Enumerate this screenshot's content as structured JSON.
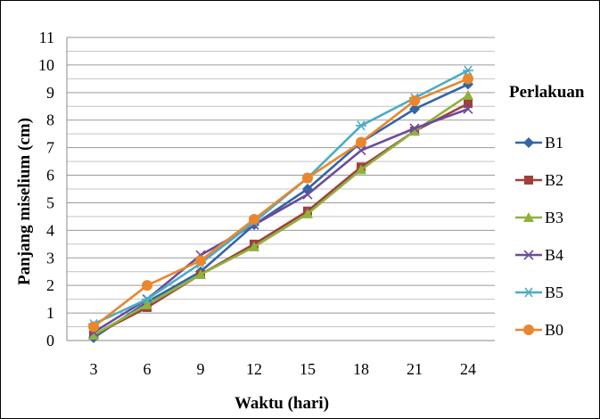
{
  "chart_data": {
    "type": "line",
    "title": "",
    "xlabel": "Waktu (hari)",
    "ylabel": "Panjang miselium (cm)",
    "x": [
      3,
      6,
      9,
      12,
      15,
      18,
      21,
      24
    ],
    "ylim": [
      0,
      11
    ],
    "yticks": [
      0,
      1,
      2,
      3,
      4,
      5,
      6,
      7,
      8,
      9,
      10,
      11
    ],
    "grid": true,
    "legend_title": "Perlakuan",
    "legend_position": "right",
    "series": [
      {
        "name": "B1",
        "color": "#3465A4",
        "marker": "diamond",
        "values": [
          0.1,
          1.4,
          2.5,
          4.2,
          5.5,
          7.2,
          8.4,
          9.3
        ]
      },
      {
        "name": "B2",
        "color": "#A0403C",
        "marker": "square",
        "values": [
          0.2,
          1.2,
          2.4,
          3.5,
          4.7,
          6.3,
          7.6,
          8.6
        ]
      },
      {
        "name": "B3",
        "color": "#8FB23C",
        "marker": "triangle",
        "values": [
          0.2,
          1.3,
          2.4,
          3.4,
          4.6,
          6.2,
          7.6,
          8.9
        ]
      },
      {
        "name": "B4",
        "color": "#6B4C9A",
        "marker": "x",
        "values": [
          0.3,
          1.5,
          3.1,
          4.2,
          5.3,
          6.9,
          7.7,
          8.4
        ]
      },
      {
        "name": "B5",
        "color": "#4BACC6",
        "marker": "star",
        "values": [
          0.6,
          1.5,
          2.8,
          4.3,
          5.9,
          7.8,
          8.8,
          9.8
        ]
      },
      {
        "name": "B0",
        "color": "#E8872E",
        "marker": "circle",
        "values": [
          0.5,
          2.0,
          2.9,
          4.4,
          5.9,
          7.2,
          8.7,
          9.5
        ]
      }
    ]
  }
}
